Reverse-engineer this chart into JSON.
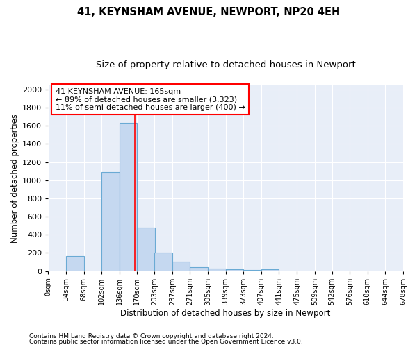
{
  "title1": "41, KEYNSHAM AVENUE, NEWPORT, NP20 4EH",
  "title2": "Size of property relative to detached houses in Newport",
  "xlabel": "Distribution of detached houses by size in Newport",
  "ylabel": "Number of detached properties",
  "footnote1": "Contains HM Land Registry data © Crown copyright and database right 2024.",
  "footnote2": "Contains public sector information licensed under the Open Government Licence v3.0.",
  "annotation_line1": "41 KEYNSHAM AVENUE: 165sqm",
  "annotation_line2": "← 89% of detached houses are smaller (3,323)",
  "annotation_line3": "11% of semi-detached houses are larger (400) →",
  "bin_edges": [
    0,
    34,
    68,
    102,
    136,
    170,
    203,
    237,
    271,
    305,
    339,
    373,
    407,
    441,
    475,
    509,
    542,
    576,
    610,
    644,
    678
  ],
  "bin_labels": [
    "0sqm",
    "34sqm",
    "68sqm",
    "102sqm",
    "136sqm",
    "170sqm",
    "203sqm",
    "237sqm",
    "271sqm",
    "305sqm",
    "339sqm",
    "373sqm",
    "407sqm",
    "441sqm",
    "475sqm",
    "509sqm",
    "542sqm",
    "576sqm",
    "610sqm",
    "644sqm",
    "678sqm"
  ],
  "bar_heights": [
    0,
    165,
    0,
    1090,
    1630,
    480,
    200,
    100,
    45,
    30,
    20,
    15,
    20,
    0,
    0,
    0,
    0,
    0,
    0,
    0
  ],
  "bar_color": "#c5d8f0",
  "bar_edge_color": "#6aaad4",
  "red_line_x": 165,
  "ylim": [
    0,
    2050
  ],
  "yticks": [
    0,
    200,
    400,
    600,
    800,
    1000,
    1200,
    1400,
    1600,
    1800,
    2000
  ],
  "bg_color": "#e8eef8",
  "title_fontsize": 10.5,
  "subtitle_fontsize": 9.5,
  "label_fontsize": 8.5,
  "tick_fontsize": 7,
  "annot_fontsize": 8,
  "footnote_fontsize": 6.5
}
